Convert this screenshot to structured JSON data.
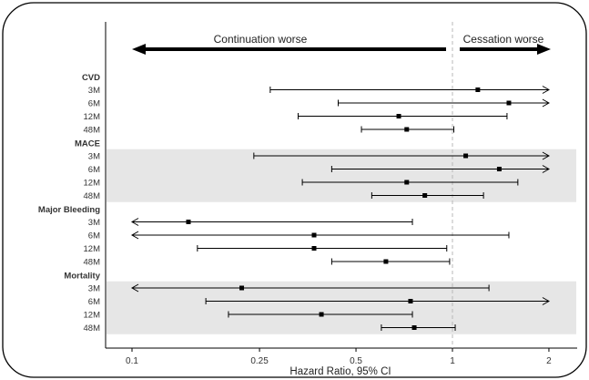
{
  "chart_data": {
    "type": "forest",
    "title": "",
    "xlabel": "Hazard Ratio, 95% CI",
    "xscale": "log",
    "xlim": [
      0.085,
      2.5
    ],
    "xticks": [
      0.1,
      0.25,
      0.5,
      1,
      2
    ],
    "xtick_labels": [
      "0.1",
      "0.25",
      "0.5",
      "1",
      "2"
    ],
    "reference_line": 1,
    "direction_labels": {
      "left": "Continuation worse",
      "right": "Cessation worse"
    },
    "groups": [
      {
        "name": "CVD",
        "shaded": false,
        "rows": [
          {
            "label": "3M",
            "estimate": 1.2,
            "lower": 0.27,
            "upper": 2.0,
            "arrow_left": false,
            "arrow_right": true
          },
          {
            "label": "6M",
            "estimate": 1.5,
            "lower": 0.44,
            "upper": 2.0,
            "arrow_left": false,
            "arrow_right": true
          },
          {
            "label": "12M",
            "estimate": 0.68,
            "lower": 0.33,
            "upper": 1.48,
            "arrow_left": false,
            "arrow_right": false
          },
          {
            "label": "48M",
            "estimate": 0.72,
            "lower": 0.52,
            "upper": 1.01,
            "arrow_left": false,
            "arrow_right": false
          }
        ]
      },
      {
        "name": "MACE",
        "shaded": true,
        "rows": [
          {
            "label": "3M",
            "estimate": 1.1,
            "lower": 0.24,
            "upper": 2.0,
            "arrow_left": false,
            "arrow_right": true
          },
          {
            "label": "6M",
            "estimate": 1.4,
            "lower": 0.42,
            "upper": 2.0,
            "arrow_left": false,
            "arrow_right": true
          },
          {
            "label": "12M",
            "estimate": 0.72,
            "lower": 0.34,
            "upper": 1.6,
            "arrow_left": false,
            "arrow_right": false
          },
          {
            "label": "48M",
            "estimate": 0.82,
            "lower": 0.56,
            "upper": 1.25,
            "arrow_left": false,
            "arrow_right": false
          }
        ]
      },
      {
        "name": "Major Bleeding",
        "shaded": false,
        "rows": [
          {
            "label": "3M",
            "estimate": 0.15,
            "lower": 0.1,
            "upper": 0.75,
            "arrow_left": true,
            "arrow_right": false
          },
          {
            "label": "6M",
            "estimate": 0.37,
            "lower": 0.1,
            "upper": 1.5,
            "arrow_left": true,
            "arrow_right": false
          },
          {
            "label": "12M",
            "estimate": 0.37,
            "lower": 0.16,
            "upper": 0.96,
            "arrow_left": false,
            "arrow_right": false
          },
          {
            "label": "48M",
            "estimate": 0.62,
            "lower": 0.42,
            "upper": 0.98,
            "arrow_left": false,
            "arrow_right": false
          }
        ]
      },
      {
        "name": "Mortality",
        "shaded": true,
        "rows": [
          {
            "label": "3M",
            "estimate": 0.22,
            "lower": 0.1,
            "upper": 1.3,
            "arrow_left": true,
            "arrow_right": false
          },
          {
            "label": "6M",
            "estimate": 0.74,
            "lower": 0.17,
            "upper": 2.0,
            "arrow_left": false,
            "arrow_right": true
          },
          {
            "label": "12M",
            "estimate": 0.39,
            "lower": 0.2,
            "upper": 0.75,
            "arrow_left": false,
            "arrow_right": false
          },
          {
            "label": "48M",
            "estimate": 0.76,
            "lower": 0.6,
            "upper": 1.02,
            "arrow_left": false,
            "arrow_right": false
          }
        ]
      }
    ]
  }
}
